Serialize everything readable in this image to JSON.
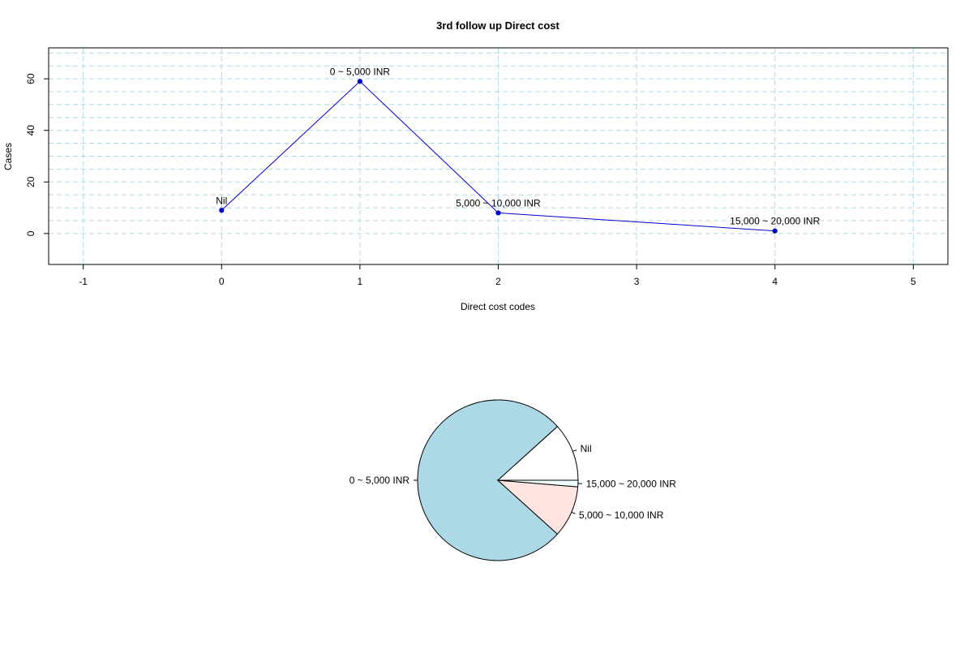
{
  "chart_data": [
    {
      "type": "line",
      "title": "3rd follow up Direct cost",
      "xlabel": "Direct cost codes",
      "ylabel": "Cases",
      "xlim": [
        -1.25,
        5.25
      ],
      "ylim": [
        -12,
        72
      ],
      "xticks": [
        -1,
        0,
        1,
        2,
        3,
        4,
        5
      ],
      "yticks": [
        0,
        20,
        40,
        60
      ],
      "grid": true,
      "series": [
        {
          "x": [
            0,
            1,
            2,
            4
          ],
          "y": [
            9,
            59,
            8,
            1
          ],
          "labels": [
            "Nil",
            "0 ~ 5,000 INR",
            "5,000 ~ 10,000 INR",
            "15,000 ~ 20,000 INR"
          ],
          "color": "#0000cc"
        }
      ]
    },
    {
      "type": "pie",
      "labels": [
        "Nil",
        "0 ~ 5,000 INR",
        "5,000 ~ 10,000 INR",
        "15,000 ~ 20,000 INR"
      ],
      "values": [
        9,
        59,
        8,
        1
      ],
      "colors": [
        "#ffffff",
        "#add8e6",
        "#ffe4e1",
        "#f0ffff"
      ]
    }
  ]
}
